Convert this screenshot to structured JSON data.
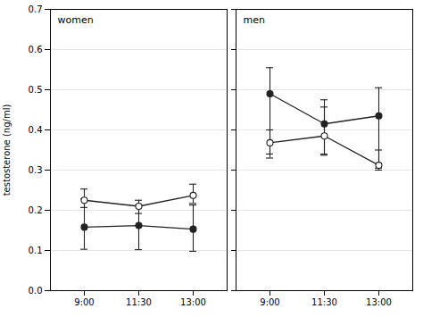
{
  "chart_data": [
    {
      "type": "line",
      "title": "women",
      "categories": [
        "9:00",
        "11:30",
        "13:00"
      ],
      "ylabel": "testosterone (ng/ml)",
      "ylim": [
        0.0,
        0.7
      ],
      "yticks": [
        {
          "value": 0.0,
          "label": "0.0"
        },
        0.1,
        0.2,
        0.3,
        0.4,
        0.5,
        0.6,
        0.7
      ],
      "grid": true,
      "series": [
        {
          "color": "#222222",
          "marker": "filled_circle",
          "values": [
            0.158,
            0.162,
            0.153
          ],
          "error_upper": [
            0.07,
            0.05,
            0.06
          ],
          "error_lower": [
            0.055,
            0.06,
            0.055
          ]
        },
        {
          "color": "#222222",
          "marker": "open_circle",
          "values": [
            0.225,
            0.21,
            0.237
          ],
          "error_upper": [
            0.028,
            0.015,
            0.028
          ],
          "error_lower": [
            0.018,
            0.018,
            0.02
          ]
        }
      ]
    },
    {
      "type": "line",
      "title": "men",
      "categories": [
        "9:00",
        "11:30",
        "13:00"
      ],
      "ylim": [
        0.0,
        0.7
      ],
      "yticks": [
        {
          "value": 0.0,
          "label": "0.0"
        },
        0.1,
        0.2,
        0.3,
        0.4,
        0.5,
        0.6,
        0.7
      ],
      "grid": true,
      "tick_labels": "x",
      "series": [
        {
          "color": "#222222",
          "marker": "filled_circle",
          "values": [
            0.49,
            0.415,
            0.435
          ],
          "error_upper": [
            0.065,
            0.06,
            0.07
          ],
          "error_lower": [
            0.15,
            0.075,
            0.13
          ]
        },
        {
          "color": "#222222",
          "marker": "open_circle",
          "values": [
            0.368,
            0.385,
            0.312
          ],
          "error_upper": [
            0.032,
            0.072,
            0.038
          ],
          "error_lower": [
            0.038,
            0.048,
            0.012
          ]
        }
      ]
    }
  ]
}
